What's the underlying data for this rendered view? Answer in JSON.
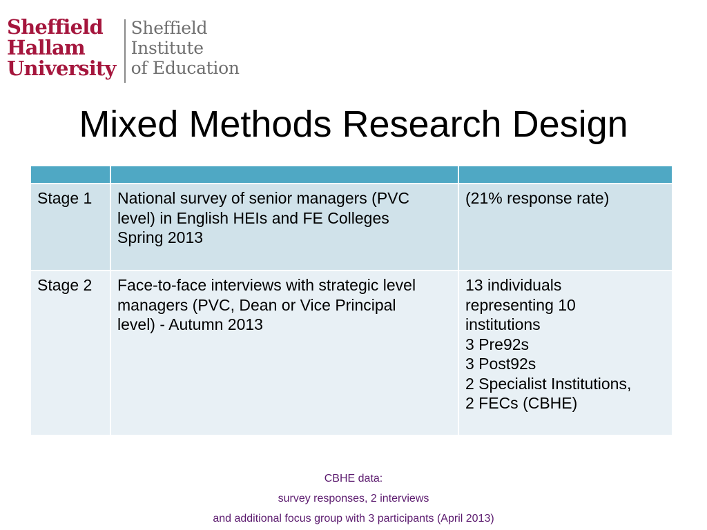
{
  "logo": {
    "university_lines": [
      "Sheffield",
      "Hallam",
      "University"
    ],
    "institute_lines": [
      "Sheffield",
      "Institute",
      "of Education"
    ],
    "brand_color": "#a5163d",
    "institute_color": "#6f6f6f"
  },
  "title": "Mixed Methods Research Design",
  "table": {
    "header_color": "#4fa8c4",
    "rows": [
      {
        "stage": "Stage 1",
        "description": [
          "National survey of senior managers (PVC",
          "level) in English HEIs and FE Colleges",
          "Spring 2013"
        ],
        "result": [
          "(21% response rate)"
        ]
      },
      {
        "stage": "Stage 2",
        "description": [
          "Face-to-face interviews with strategic level",
          "managers (PVC, Dean or Vice Principal",
          "level) - Autumn 2013"
        ],
        "result": [
          "13 individuals",
          "representing 10",
          "institutions",
          "3 Pre92s",
          "3 Post92s",
          "2 Specialist Institutions,",
          "2 FECs (CBHE)"
        ]
      }
    ]
  },
  "footer": {
    "lines": [
      "CBHE data:",
      "survey responses, 2 interviews",
      "and additional focus group with 3 participants (April 2013)"
    ],
    "color": "#5b1a6e"
  }
}
